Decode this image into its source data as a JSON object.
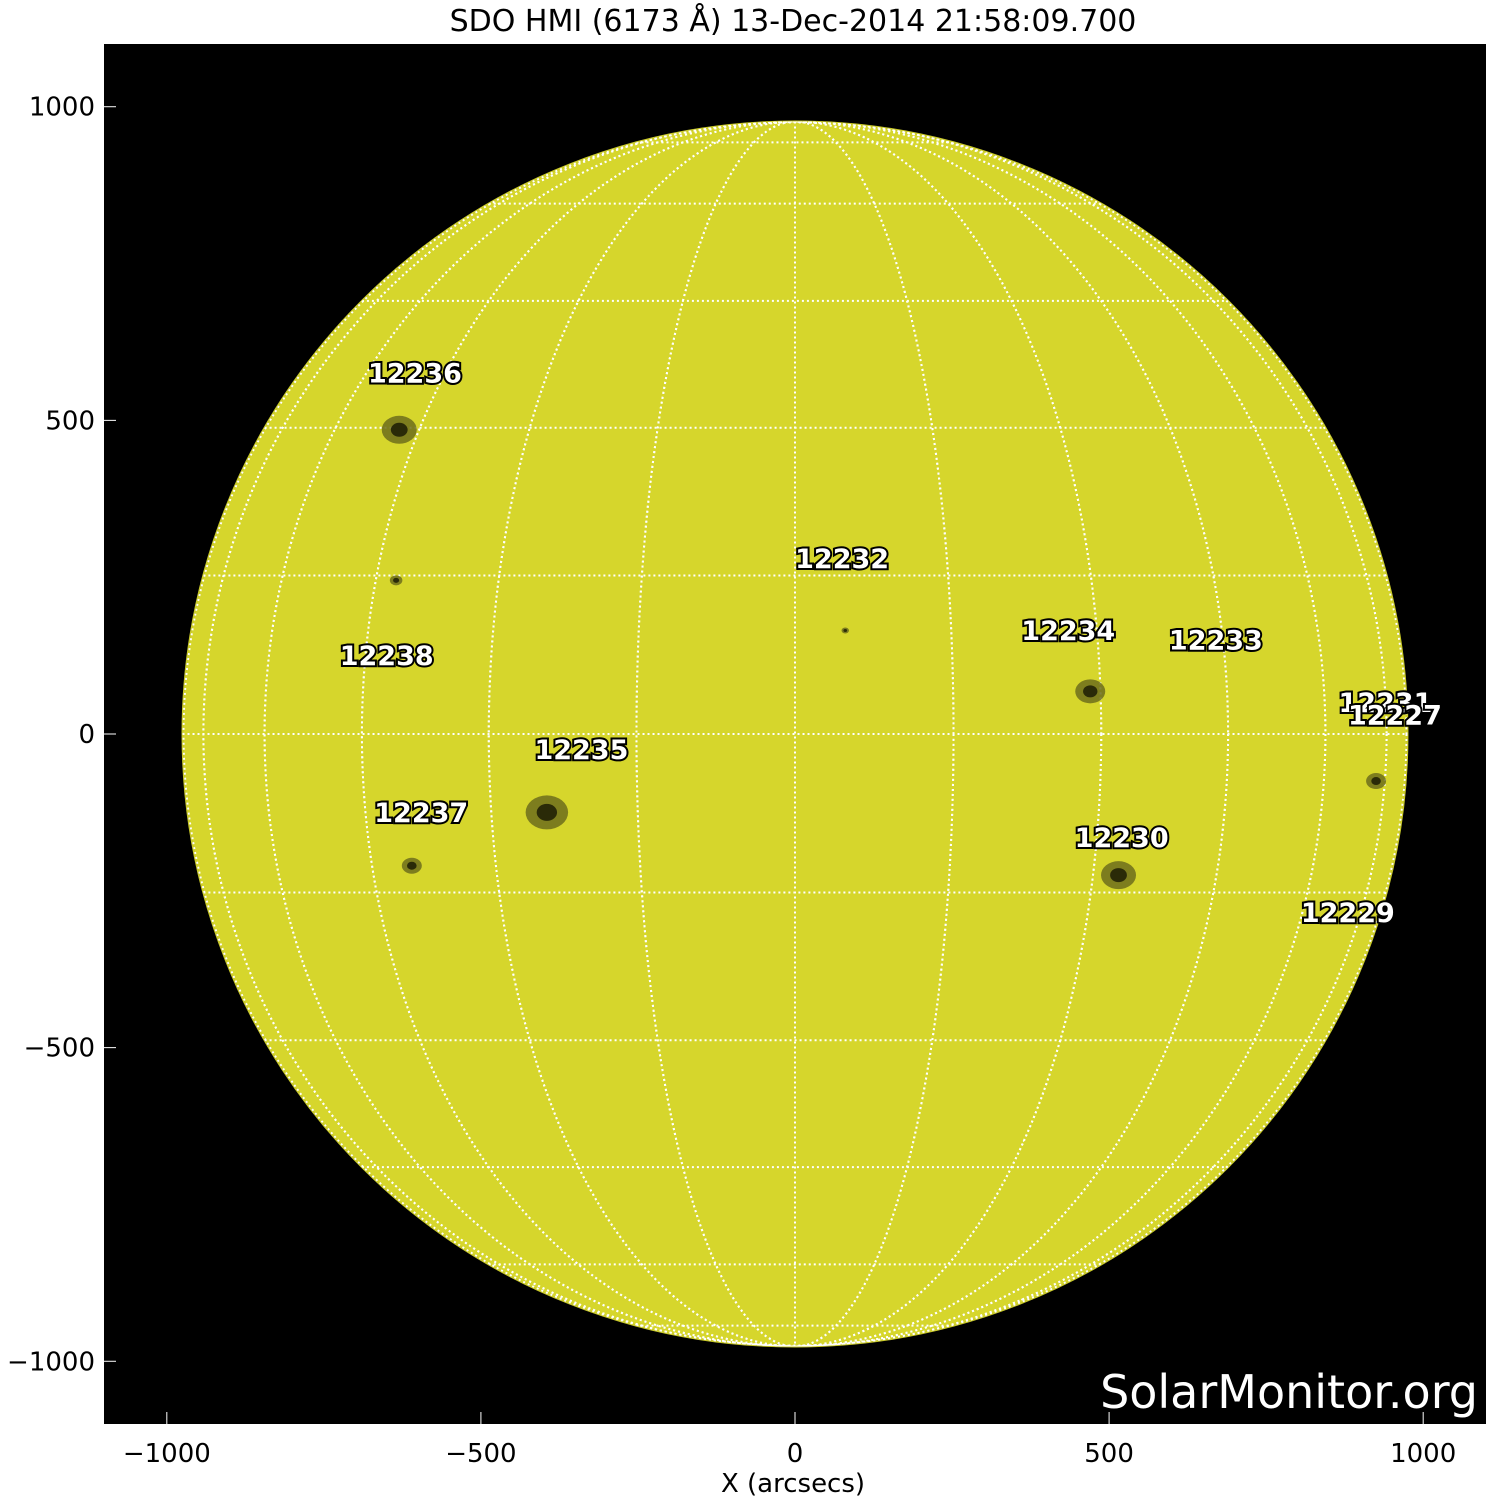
{
  "title": "SDO HMI (6173 Å) 13-Dec-2014 21:58:09.700",
  "watermark": "SolarMonitor.org",
  "colors": {
    "disk": "#d6d62c",
    "limb": "#c9c92a",
    "background": "#000000",
    "grid": "#ffffff",
    "spot": "#2a2a08"
  },
  "axes": {
    "x": {
      "label": "X (arcsecs)",
      "range": [
        -1100,
        1100
      ],
      "ticks": [
        {
          "v": -1000,
          "label": "−1000"
        },
        {
          "v": -500,
          "label": "−500"
        },
        {
          "v": 0,
          "label": "0"
        },
        {
          "v": 500,
          "label": "500"
        },
        {
          "v": 1000,
          "label": "1000"
        }
      ]
    },
    "y": {
      "range": [
        -1100,
        1100
      ],
      "ticks": [
        {
          "v": 1000,
          "label": "1000"
        },
        {
          "v": 500,
          "label": "500"
        },
        {
          "v": 0,
          "label": "0"
        },
        {
          "v": -500,
          "label": "−500"
        },
        {
          "v": -1000,
          "label": "−1000"
        }
      ]
    }
  },
  "sun": {
    "center": [
      0,
      0
    ],
    "radius_arcsec": 975,
    "grid_spacing_deg": 15
  },
  "regions": [
    {
      "id": "12236",
      "label_xy": [
        -605,
        560
      ],
      "spot_xy": [
        -630,
        485
      ],
      "spot_r": 14
    },
    {
      "id": "12232",
      "label_xy": [
        75,
        265
      ],
      "spot_xy": [
        80,
        165
      ],
      "spot_r": 3
    },
    {
      "id": "12234",
      "label_xy": [
        435,
        150
      ],
      "spot_xy": [
        470,
        68
      ],
      "spot_r": 12
    },
    {
      "id": "12233",
      "label_xy": [
        670,
        135
      ],
      "spot_xy": [
        0,
        0
      ],
      "spot_r": 0
    },
    {
      "id": "12238",
      "label_xy": [
        -650,
        110
      ],
      "spot_xy": [
        -635,
        245
      ],
      "spot_r": 5
    },
    {
      "id": "12231",
      "label_xy": [
        940,
        35
      ],
      "spot_xy": [
        0,
        0
      ],
      "spot_r": 0
    },
    {
      "id": "12227",
      "label_xy": [
        955,
        15
      ],
      "spot_xy": [
        925,
        -75
      ],
      "spot_r": 8
    },
    {
      "id": "12235",
      "label_xy": [
        -340,
        -40
      ],
      "spot_xy": [
        -395,
        -125
      ],
      "spot_r": 17
    },
    {
      "id": "12237",
      "label_xy": [
        -595,
        -140
      ],
      "spot_xy": [
        -610,
        -210
      ],
      "spot_r": 8
    },
    {
      "id": "12230",
      "label_xy": [
        520,
        -180
      ],
      "spot_xy": [
        515,
        -225
      ],
      "spot_r": 14
    },
    {
      "id": "12229",
      "label_xy": [
        880,
        -300
      ],
      "spot_xy": [
        0,
        0
      ],
      "spot_r": 0
    }
  ]
}
